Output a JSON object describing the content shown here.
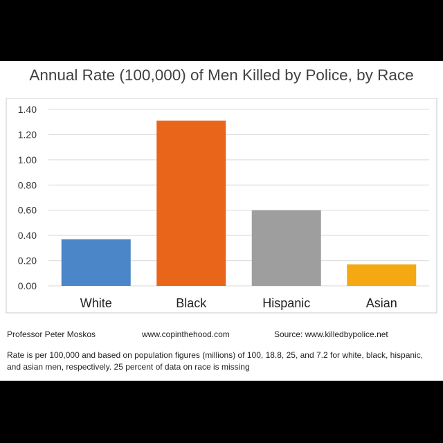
{
  "chart_data": {
    "type": "bar",
    "title": "Annual Rate (100,000) of Men Killed by Police, by Race",
    "categories": [
      "White",
      "Black",
      "Hispanic",
      "Asian"
    ],
    "values": [
      0.37,
      1.31,
      0.6,
      0.17
    ],
    "colors": [
      "#4a86c8",
      "#e8651a",
      "#9e9e9e",
      "#f4a913"
    ],
    "ylim": [
      0,
      1.4
    ],
    "yticks": [
      "0.00",
      "0.20",
      "0.40",
      "0.60",
      "0.80",
      "1.00",
      "1.20",
      "1.40"
    ],
    "grid": true,
    "xlabel": "",
    "ylabel": ""
  },
  "footer": {
    "author": "Professor Peter Moskos",
    "website": "www.copinthehood.com",
    "source": "Source: www.killedbypolice.net",
    "note": "Rate is per 100,000 and based on population figures (millions) of 100, 18.8, 25, and 7.2 for white, black, hispanic, and asian men, respectively.  25 percent of data on race is missing"
  }
}
